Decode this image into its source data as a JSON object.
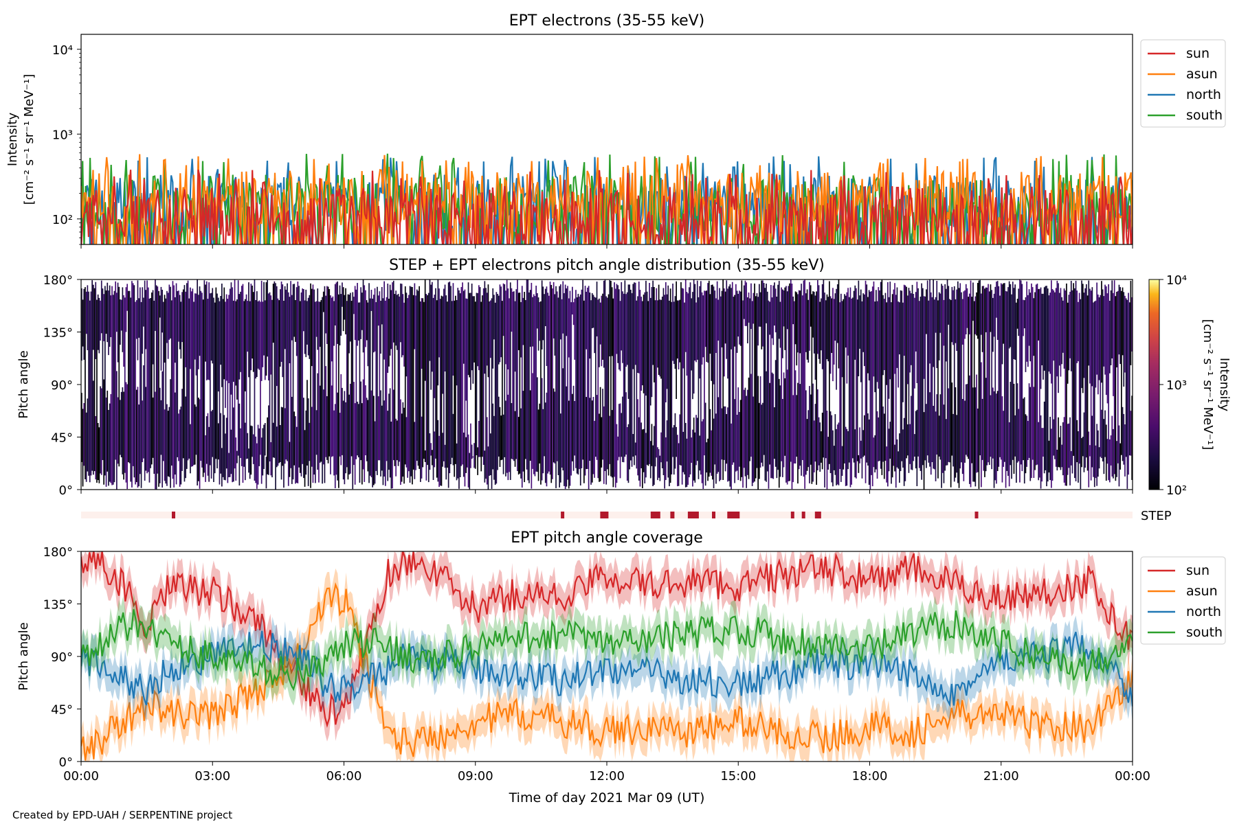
{
  "footer": "Created by EPD-UAH / SERPENTINE project",
  "colors": {
    "sun": "#d62728",
    "asun": "#ff7f0e",
    "north": "#1f77b4",
    "south": "#2ca02c",
    "step": "#b2182b",
    "step_bg": "#fdf0ec"
  },
  "chart_data": [
    {
      "type": "line",
      "title": "EPT electrons (35-55 keV)",
      "ylabel": "Intensity",
      "ylabel_units": "[cm⁻² s⁻¹ sr⁻¹ MeV⁻¹]",
      "yscale": "log",
      "ylim": [
        50,
        15000
      ],
      "yticks": [
        {
          "v": 100,
          "label": "10²"
        },
        {
          "v": 1000,
          "label": "10³"
        },
        {
          "v": 10000,
          "label": "10⁴"
        }
      ],
      "xlim_hours": [
        0,
        24
      ],
      "legend": {
        "position": "outside-right",
        "entries": [
          "sun",
          "asun",
          "north",
          "south"
        ]
      },
      "series": [
        {
          "name": "north",
          "color": "#1f77b4",
          "typical": 150,
          "peak": 550
        },
        {
          "name": "south",
          "color": "#2ca02c",
          "typical": 150,
          "peak": 600
        },
        {
          "name": "asun",
          "color": "#ff7f0e",
          "typical": 170,
          "peak": 580
        },
        {
          "name": "sun",
          "color": "#d62728",
          "typical": 110,
          "peak": 380
        }
      ]
    },
    {
      "type": "heatmap",
      "title": "STEP + EPT electrons pitch angle distribution (35-55 keV)",
      "ylabel": "Pitch angle",
      "yticks": [
        "0°",
        "45°",
        "90°",
        "135°",
        "180°"
      ],
      "ylim": [
        0,
        180
      ],
      "colorbar": {
        "label": "Intensity",
        "units": "[cm⁻² s⁻¹ sr⁻¹ MeV⁻¹]",
        "scale": "log",
        "range": [
          100,
          10000
        ],
        "ticks": [
          "10²",
          "10³",
          "10⁴"
        ]
      }
    },
    {
      "type": "bar",
      "label": "STEP",
      "description_hours": [
        2.07,
        10.95,
        11.85,
        13.0,
        13.45,
        13.85,
        14.4,
        14.75,
        16.2,
        16.45,
        16.75,
        20.4
      ]
    },
    {
      "type": "line",
      "title": "EPT pitch angle coverage",
      "ylabel": "Pitch angle",
      "yticks": [
        "0°",
        "45°",
        "90°",
        "135°",
        "180°"
      ],
      "ylim": [
        0,
        180
      ],
      "xlabel": "Time of day 2021 Mar 09 (UT)",
      "xticks": [
        "00:00",
        "03:00",
        "06:00",
        "09:00",
        "12:00",
        "15:00",
        "18:00",
        "21:00",
        "00:00"
      ],
      "legend": {
        "position": "outside-right",
        "entries": [
          "sun",
          "asun",
          "north",
          "south"
        ]
      },
      "series": [
        {
          "name": "sun",
          "color": "#d62728",
          "x_hours": [
            0,
            0.5,
            1,
            1.5,
            2,
            3,
            4,
            5,
            5.5,
            6,
            7,
            7.5,
            8,
            9,
            10,
            11,
            12,
            13,
            14,
            15,
            16,
            17,
            18,
            19,
            20,
            21,
            22,
            23,
            24
          ],
          "y": [
            175,
            170,
            150,
            110,
            150,
            145,
            120,
            70,
            45,
            40,
            160,
            175,
            165,
            130,
            145,
            140,
            160,
            150,
            155,
            150,
            160,
            165,
            155,
            165,
            150,
            140,
            145,
            155,
            100
          ]
        },
        {
          "name": "asun",
          "color": "#ff7f0e",
          "x_hours": [
            0,
            0.5,
            1,
            1.5,
            2,
            3,
            4,
            5,
            5.5,
            6,
            7,
            7.5,
            8,
            9,
            10,
            11,
            12,
            13,
            14,
            15,
            16,
            17,
            18,
            19,
            20,
            21,
            22,
            23,
            24
          ],
          "y": [
            10,
            20,
            35,
            50,
            40,
            40,
            60,
            90,
            135,
            140,
            25,
            15,
            20,
            35,
            40,
            35,
            25,
            30,
            25,
            35,
            25,
            20,
            30,
            25,
            40,
            40,
            30,
            30,
            70
          ]
        },
        {
          "name": "north",
          "color": "#1f77b4",
          "x_hours": [
            0,
            0.5,
            1,
            1.5,
            2,
            3,
            4,
            5,
            5.5,
            6,
            7,
            7.5,
            8,
            9,
            10,
            11,
            12,
            13,
            14,
            15,
            16,
            17,
            18,
            19,
            20,
            21,
            22,
            23,
            24
          ],
          "y": [
            90,
            80,
            70,
            60,
            80,
            90,
            100,
            90,
            70,
            60,
            80,
            90,
            85,
            80,
            75,
            70,
            80,
            75,
            70,
            65,
            75,
            85,
            80,
            75,
            60,
            85,
            90,
            100,
            60
          ]
        },
        {
          "name": "south",
          "color": "#2ca02c",
          "x_hours": [
            0,
            0.5,
            1,
            1.5,
            2,
            3,
            4,
            5,
            5.5,
            6,
            7,
            7.5,
            8,
            9,
            10,
            11,
            12,
            13,
            14,
            15,
            16,
            17,
            18,
            19,
            20,
            21,
            22,
            23,
            24
          ],
          "y": [
            90,
            100,
            115,
            120,
            100,
            90,
            80,
            75,
            80,
            100,
            100,
            90,
            85,
            100,
            105,
            110,
            100,
            105,
            110,
            115,
            105,
            100,
            95,
            110,
            120,
            100,
            90,
            80,
            110
          ]
        }
      ]
    }
  ]
}
